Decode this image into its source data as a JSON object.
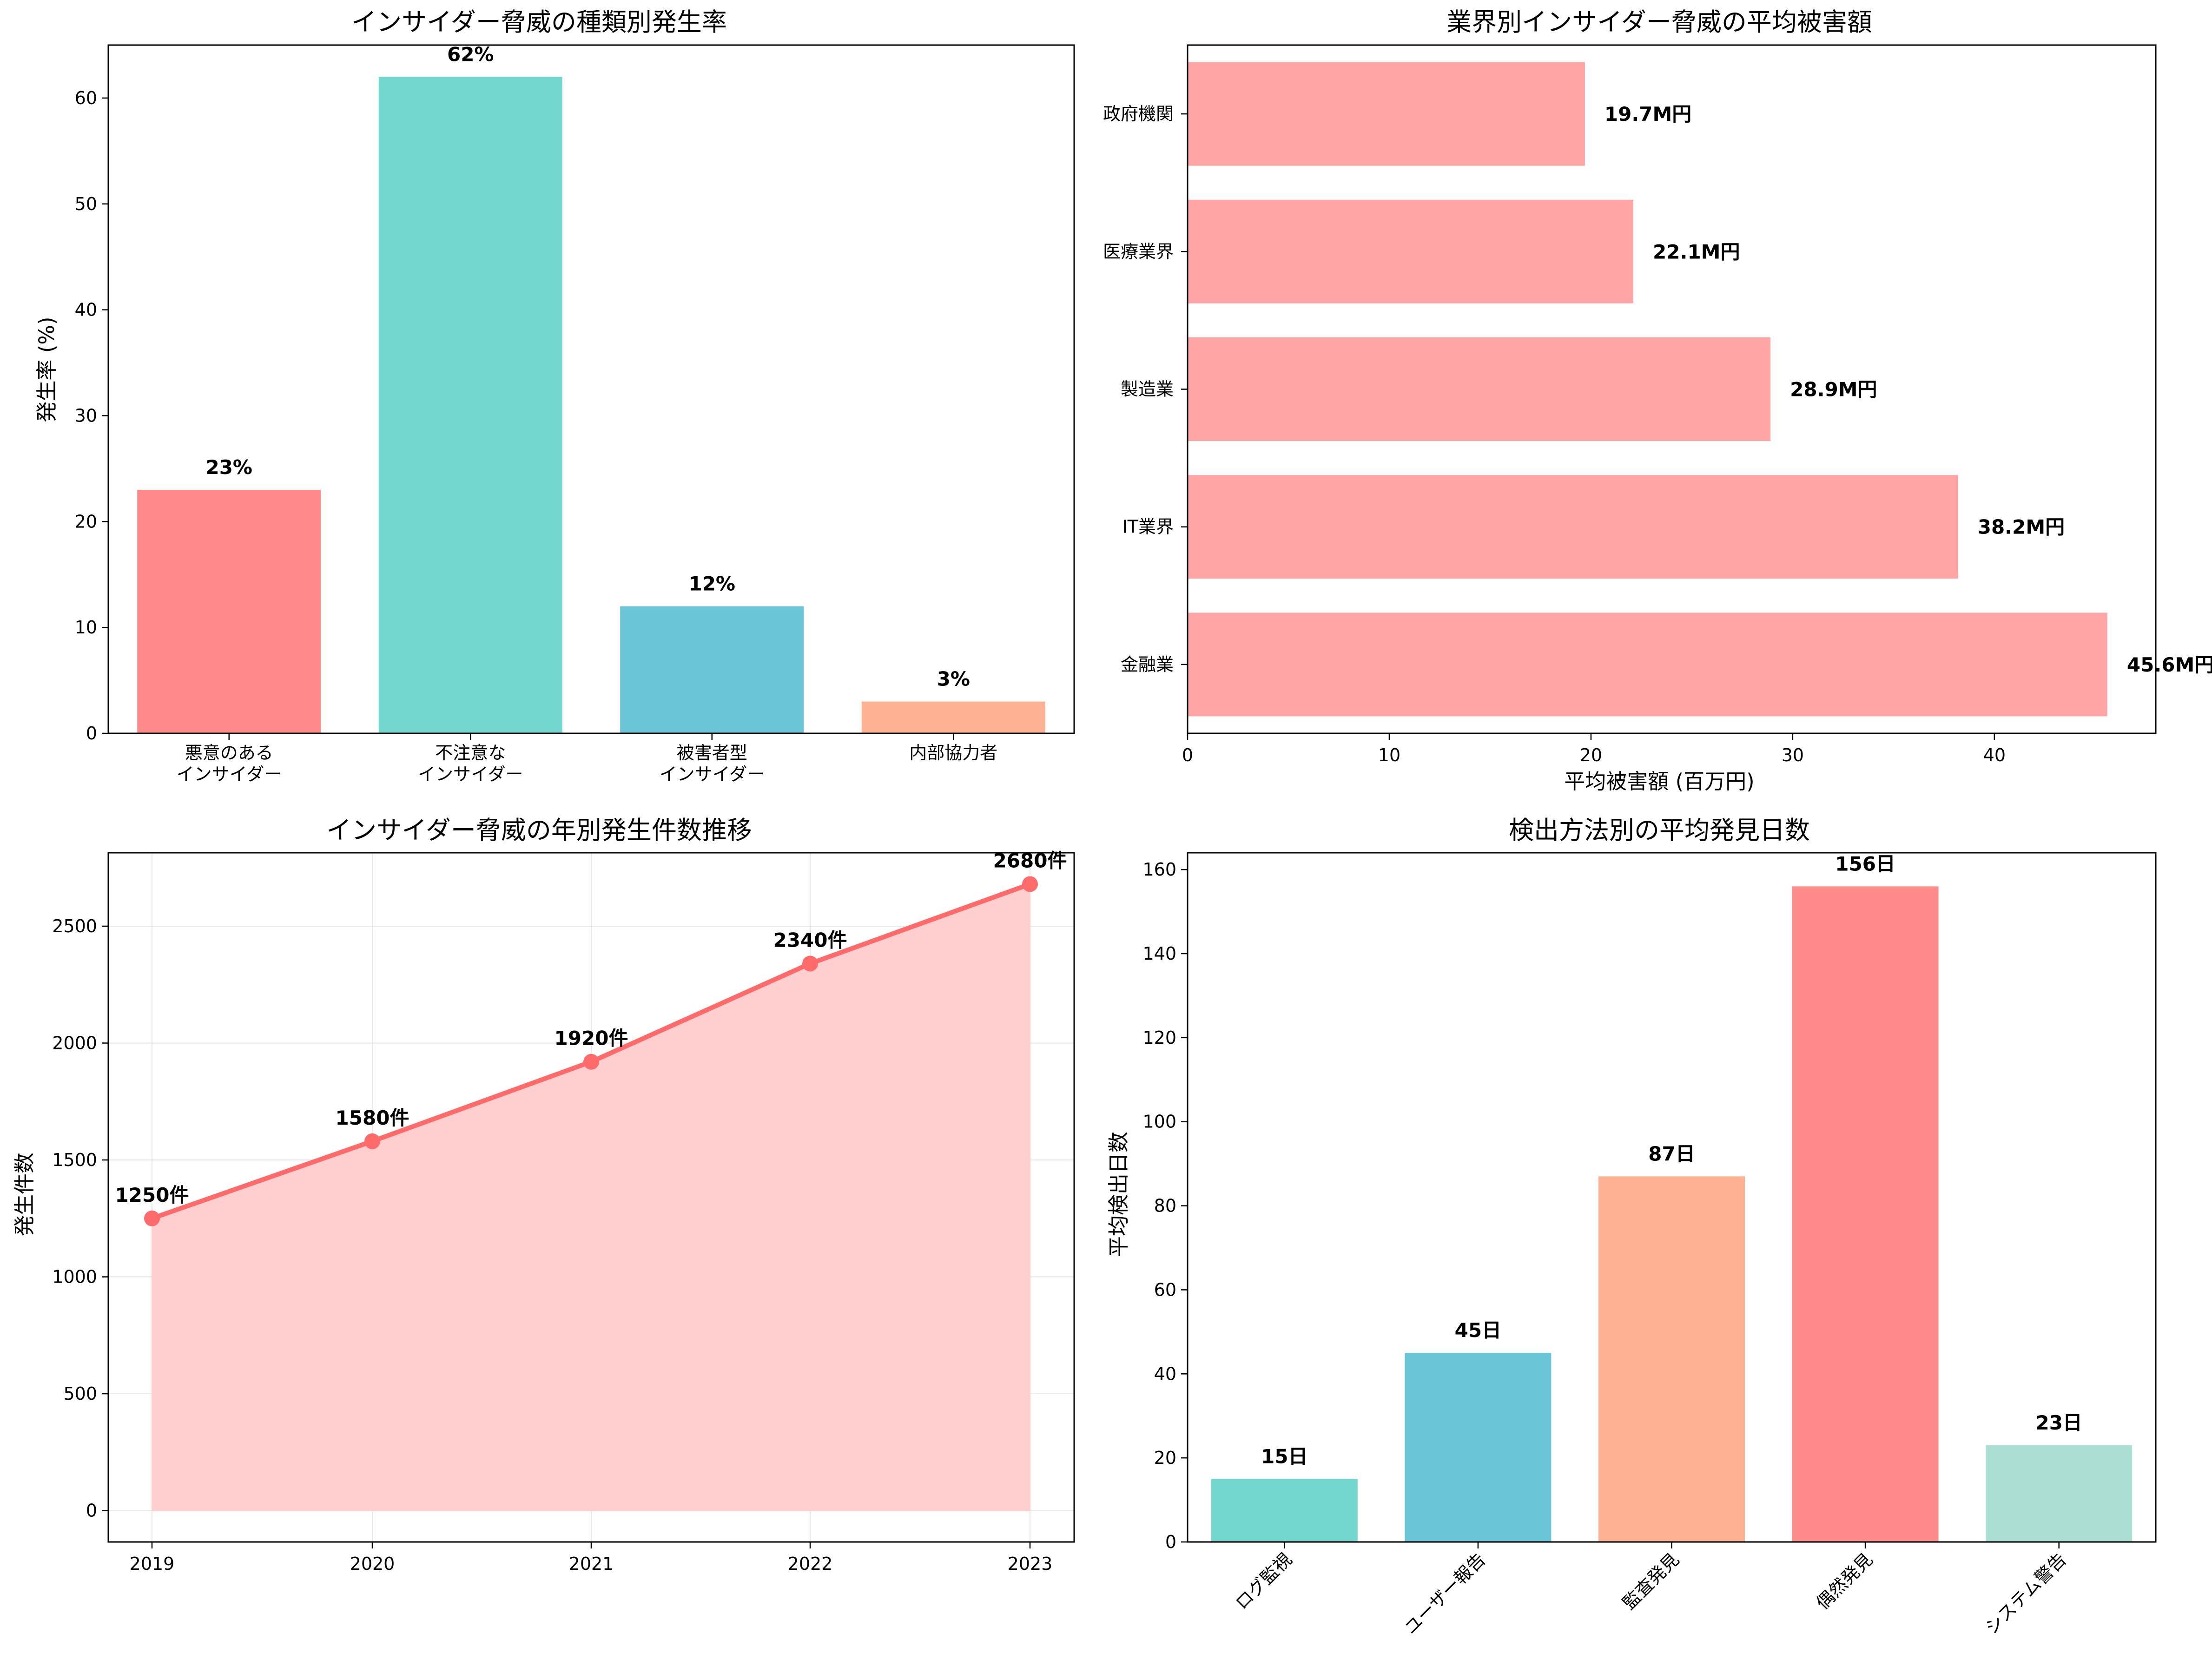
{
  "chart_data": [
    {
      "type": "bar",
      "title": "インサイダー脅威の種類別発生率",
      "xlabel": "",
      "ylabel": "発生率 (%)",
      "ylim": [
        0,
        65
      ],
      "yticks": [
        "0",
        "10",
        "20",
        "30",
        "40",
        "50",
        "60"
      ],
      "categories": [
        [
          "悪意のある",
          "インサイダー"
        ],
        [
          "不注意な",
          "インサイダー"
        ],
        [
          "被害者型",
          "インサイダー"
        ],
        [
          "内部協力者"
        ]
      ],
      "values": [
        23,
        62,
        12,
        3
      ],
      "labels": [
        "23%",
        "62%",
        "12%",
        "3%"
      ],
      "colors": [
        "#ff8a8a",
        "#74d7cf",
        "#6bc5d9",
        "#ffb194"
      ]
    },
    {
      "type": "barh",
      "title": "業界別インサイダー脅威の平均被害額",
      "xlabel": "平均被害額 (百万円)",
      "ylabel": "",
      "xlim": [
        0,
        48
      ],
      "xticks": [
        "0",
        "10",
        "20",
        "30",
        "40"
      ],
      "categories": [
        "金融業",
        "IT業界",
        "製造業",
        "医療業界",
        "政府機関"
      ],
      "values": [
        45.6,
        38.2,
        28.9,
        22.1,
        19.7
      ],
      "labels": [
        "45.6M円",
        "38.2M円",
        "28.9M円",
        "22.1M円",
        "19.7M円"
      ],
      "color": "#ffa5a6"
    },
    {
      "type": "area",
      "title": "インサイダー脅威の年別発生件数推移",
      "xlabel": "",
      "ylabel": "発生件数",
      "ylim": [
        -134,
        2814
      ],
      "yticks": [
        "0",
        "500",
        "1000",
        "1500",
        "2000",
        "2500"
      ],
      "x": [
        "2019",
        "2020",
        "2021",
        "2022",
        "2023"
      ],
      "values": [
        1250,
        1580,
        1920,
        2340,
        2680
      ],
      "labels": [
        "1250件",
        "1580件",
        "1920件",
        "2340件",
        "2680件"
      ],
      "line_color": "#ff6b6b",
      "fill_color": "#ffcfcf",
      "grid": true
    },
    {
      "type": "bar",
      "title": "検出方法別の平均発見日数",
      "xlabel": "",
      "ylabel": "平均検出日数",
      "ylim": [
        0,
        164
      ],
      "yticks": [
        "0",
        "20",
        "40",
        "60",
        "80",
        "100",
        "120",
        "140",
        "160"
      ],
      "categories": [
        "ログ監視",
        "ユーザー報告",
        "監査発見",
        "偶然発見",
        "システム警告"
      ],
      "values": [
        15,
        45,
        87,
        156,
        23
      ],
      "labels": [
        "15日",
        "45日",
        "87日",
        "156日",
        "23日"
      ],
      "colors": [
        "#74d7cf",
        "#6bc5d9",
        "#ffb194",
        "#ff8a8a",
        "#abdfd3"
      ]
    }
  ]
}
